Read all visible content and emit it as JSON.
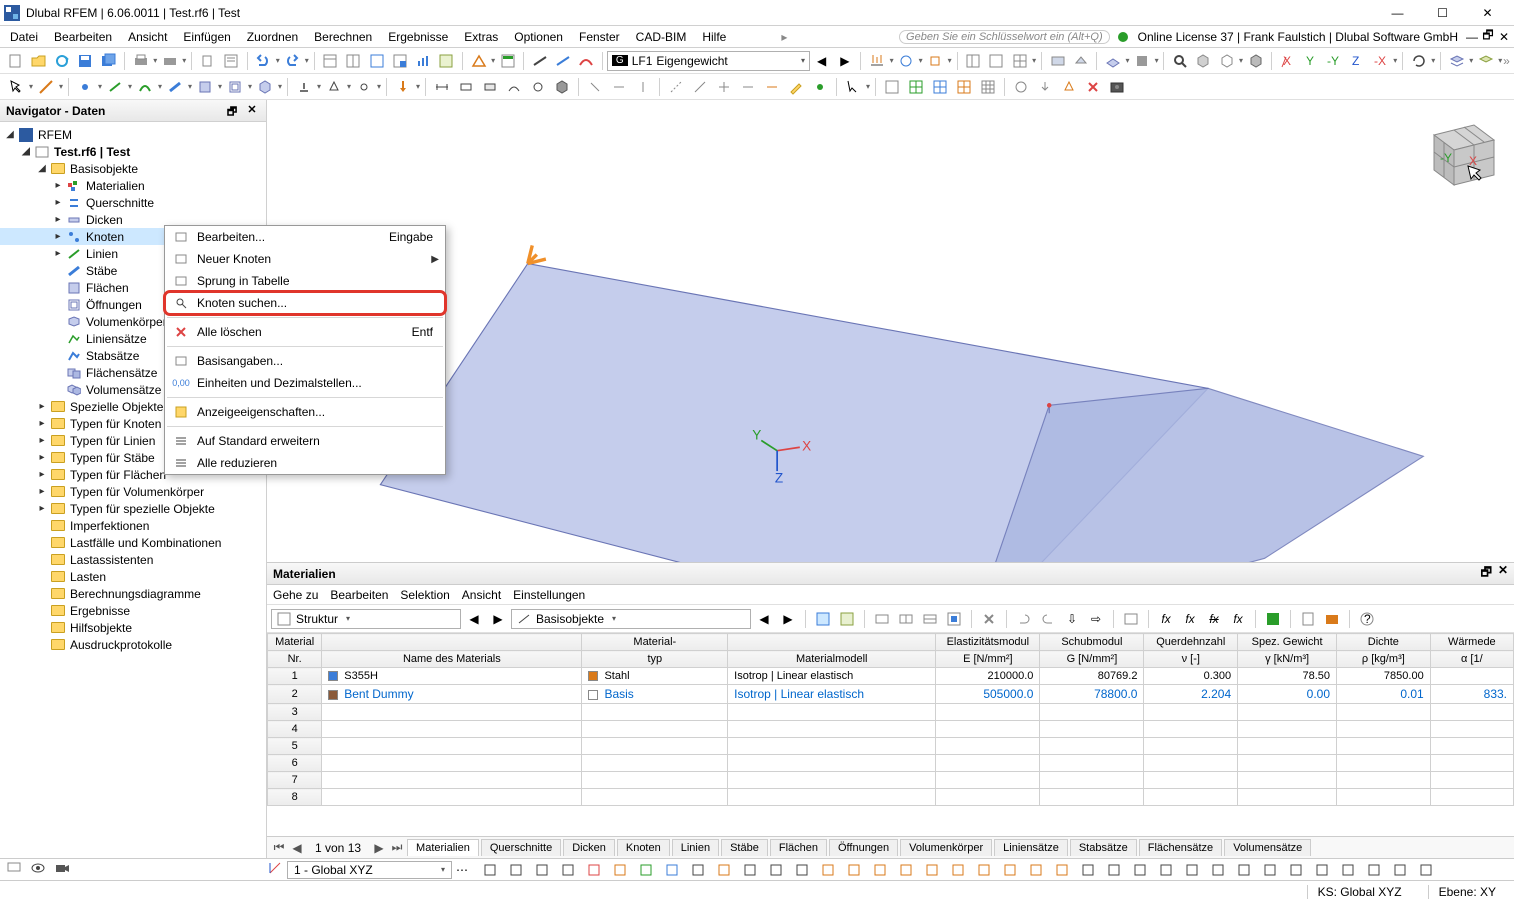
{
  "title": "Dlubal RFEM | 6.06.0011 | Test.rf6 | Test",
  "menus": [
    "Datei",
    "Bearbeiten",
    "Ansicht",
    "Einfügen",
    "Zuordnen",
    "Berechnen",
    "Ergebnisse",
    "Extras",
    "Optionen",
    "Fenster",
    "CAD-BIM",
    "Hilfe"
  ],
  "key_hint": "Geben Sie ein Schlüsselwort ein (Alt+Q)",
  "license": "Online License 37 | Frank Faulstich | Dlubal Software GmbH",
  "load_combo": {
    "code": "G",
    "id": "LF1",
    "name": "Eigengewicht"
  },
  "navigator": {
    "title": "Navigator - Daten",
    "root": "RFEM",
    "model": "Test.rf6 | Test",
    "basis": "Basisobjekte",
    "basis_children": [
      "Materialien",
      "Querschnitte",
      "Dicken",
      "Knoten",
      "Linien",
      "Stäbe",
      "Flächen",
      "Öffnungen",
      "Volumenkörper",
      "Liniensätze",
      "Stabsätze",
      "Flächensätze",
      "Volumensätze"
    ],
    "selected": "Knoten",
    "top_children": [
      "Spezielle Objekte",
      "Typen für Knoten",
      "Typen für Linien",
      "Typen für Stäbe",
      "Typen für Flächen",
      "Typen für Volumenkörper",
      "Typen für spezielle Objekte",
      "Imperfektionen",
      "Lastfälle und Kombinationen",
      "Lastassistenten",
      "Lasten",
      "Berechnungsdiagramme",
      "Ergebnisse",
      "Hilfsobjekte",
      "Ausdruckprotokolle"
    ]
  },
  "ctx_menu": {
    "items": [
      {
        "label": "Bearbeiten...",
        "shortcut": "Eingabe"
      },
      {
        "label": "Neuer Knoten",
        "arrow": true
      },
      {
        "label": "Sprung in Tabelle"
      },
      {
        "label": "Knoten suchen...",
        "highlight": true
      },
      {
        "sep": true
      },
      {
        "label": "Alle löschen",
        "shortcut": "Entf",
        "red": true
      },
      {
        "sep": true
      },
      {
        "label": "Basisangaben..."
      },
      {
        "label": "Einheiten und Dezimalstellen..."
      },
      {
        "sep": true
      },
      {
        "label": "Anzeigeeigenschaften..."
      },
      {
        "sep": true
      },
      {
        "label": "Auf Standard erweitern"
      },
      {
        "label": "Alle reduzieren"
      }
    ]
  },
  "materials_panel": {
    "title": "Materialien",
    "menu": [
      "Gehe zu",
      "Bearbeiten",
      "Selektion",
      "Ansicht",
      "Einstellungen"
    ],
    "combo1": "Struktur",
    "combo2": "Basisobjekte",
    "columns": [
      {
        "h1": "Material",
        "h2": "Nr."
      },
      {
        "h1": "",
        "h2": "Name des Materials"
      },
      {
        "h1": "Material-",
        "h2": "typ"
      },
      {
        "h1": "",
        "h2": "Materialmodell"
      },
      {
        "h1": "Elastizitätsmodul",
        "h2": "E [N/mm²]"
      },
      {
        "h1": "Schubmodul",
        "h2": "G [N/mm²]"
      },
      {
        "h1": "Querdehnzahl",
        "h2": "ν [-]"
      },
      {
        "h1": "Spez. Gewicht",
        "h2": "γ [kN/m³]"
      },
      {
        "h1": "Dichte",
        "h2": "ρ [kg/m³]"
      },
      {
        "h1": "Wärmede",
        "h2": "α [1/"
      }
    ],
    "rows": [
      {
        "nr": "1",
        "name": "S355H",
        "name_sw": "#3b7dd8",
        "typ": "Stahl",
        "typ_sw": "#d97a1a",
        "model": "Isotrop | Linear elastisch",
        "E": "210000.0",
        "G": "80769.2",
        "nu": "0.300",
        "gamma": "78.50",
        "rho": "7850.00",
        "alpha": ""
      },
      {
        "nr": "2",
        "name": "Bent Dummy",
        "name_sw": "#8a5a3a",
        "name_link": true,
        "typ": "Basis",
        "typ_link": true,
        "model": "Isotrop | Linear elastisch",
        "model_link": true,
        "E": "505000.0",
        "E_link": true,
        "G": "78800.0",
        "G_link": true,
        "nu": "2.204",
        "nu_link": true,
        "gamma": "0.00",
        "gamma_link": true,
        "rho": "0.01",
        "rho_link": true,
        "alpha": "833.",
        "alpha_link": true
      }
    ],
    "empty_rows": [
      "3",
      "4",
      "5",
      "6",
      "7",
      "8"
    ],
    "nav": "1 von 13",
    "tabs": [
      "Materialien",
      "Querschnitte",
      "Dicken",
      "Knoten",
      "Linien",
      "Stäbe",
      "Flächen",
      "Öffnungen",
      "Volumenkörper",
      "Liniensätze",
      "Stabsätze",
      "Flächensätze",
      "Volumensätze"
    ],
    "active_tab": "Materialien"
  },
  "work_plane": "1 - Global XYZ",
  "status": {
    "ks": "KS: Global XYZ",
    "ebene": "Ebene: XY"
  },
  "colors": {
    "surface": "#c5cdec",
    "surface_dark": "#acb8e2",
    "edge": "#6a75b5",
    "x": "#d44",
    "y": "#2a9d2a",
    "z": "#2255cc",
    "arrow": "#f0902a",
    "highlight": "#e0352b"
  }
}
